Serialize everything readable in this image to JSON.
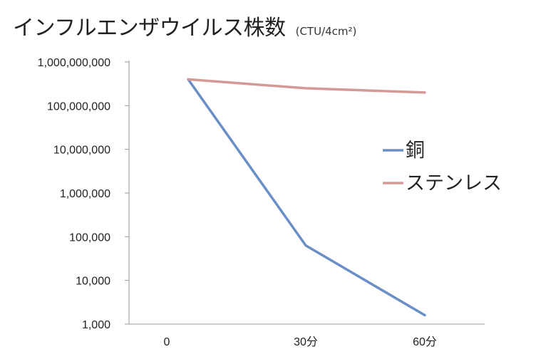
{
  "title": "インフルエンザウイルス株数",
  "unit": "(CTU/4cm²)",
  "chart_data": {
    "type": "line",
    "title": "インフルエンザウイルス株数",
    "unit_label": "(CTU/4cm²)",
    "categories": [
      "0",
      "30分",
      "60分"
    ],
    "y_scale": "log",
    "ylim": [
      1000,
      1000000000
    ],
    "y_ticks": [
      "1,000",
      "10,000",
      "100,000",
      "1,000,000",
      "10,000,000",
      "100,000,000",
      "1,000,000,000"
    ],
    "grid": false,
    "legend_position": "right",
    "series": [
      {
        "name": "銅",
        "color": "#6a8fc7",
        "values": [
          400000000,
          63000.0,
          1600
        ]
      },
      {
        "name": "ステンレス",
        "color": "#d49a98",
        "values": [
          400000000,
          250000000,
          200000000
        ]
      }
    ]
  }
}
